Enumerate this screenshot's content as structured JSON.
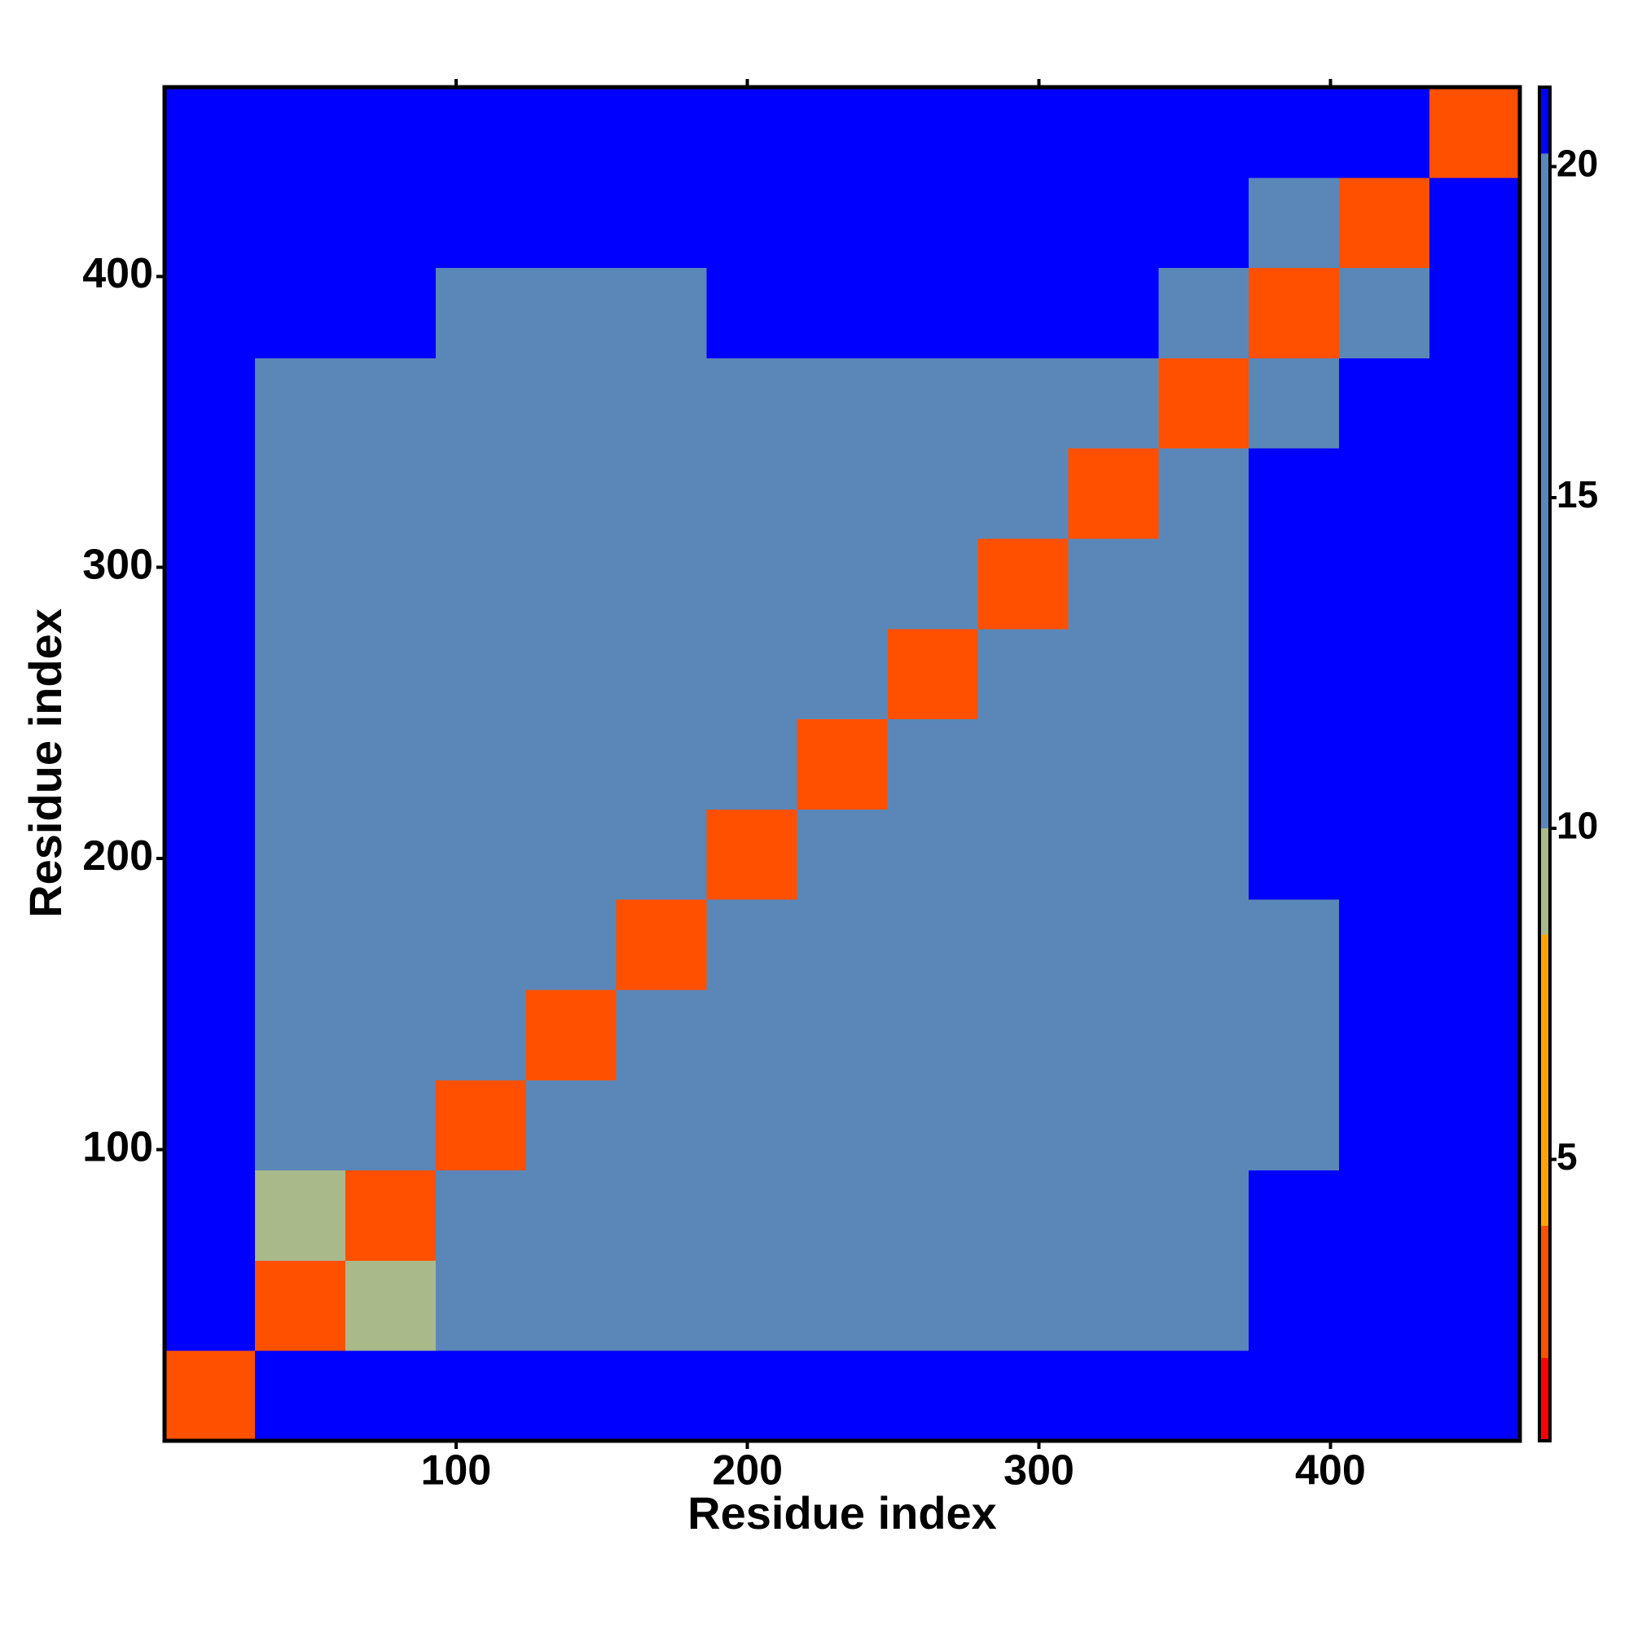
{
  "chart_data": {
    "type": "heatmap",
    "x_label": "Residue index",
    "y_label": "Residue index",
    "x_bins": [
      0,
      31,
      62,
      93,
      124,
      155,
      186,
      217,
      248,
      279,
      310,
      341,
      372,
      403,
      434,
      465
    ],
    "y_bins": [
      0,
      31,
      62,
      93,
      124,
      155,
      186,
      217,
      248,
      279,
      310,
      341,
      372,
      403,
      434,
      465
    ],
    "z": [
      [
        4,
        22,
        25,
        25,
        25,
        25,
        25,
        25,
        25,
        25,
        25,
        25,
        25,
        25,
        25
      ],
      [
        22,
        4,
        10,
        16,
        16,
        16,
        16,
        17,
        17,
        17,
        17,
        17,
        25,
        25,
        25
      ],
      [
        25,
        10,
        4,
        11,
        16,
        16,
        16,
        16,
        16,
        16,
        17,
        17,
        25,
        25,
        25
      ],
      [
        25,
        16,
        11,
        4,
        12,
        16,
        15,
        16,
        16,
        16,
        16,
        17,
        18,
        25,
        25
      ],
      [
        25,
        16,
        16,
        12,
        4,
        13,
        14,
        16,
        16,
        16,
        16,
        17,
        18,
        25,
        25
      ],
      [
        25,
        16,
        16,
        16,
        13,
        4,
        12,
        14,
        15,
        16,
        16,
        17,
        18,
        25,
        25
      ],
      [
        25,
        16,
        16,
        15,
        14,
        12,
        4,
        12,
        14,
        16,
        16,
        17,
        25,
        25,
        25
      ],
      [
        25,
        17,
        16,
        16,
        16,
        14,
        12,
        4,
        12,
        14,
        15,
        16,
        25,
        25,
        25
      ],
      [
        25,
        17,
        16,
        16,
        16,
        15,
        14,
        12,
        4,
        12,
        14,
        16,
        25,
        25,
        25
      ],
      [
        25,
        17,
        16,
        16,
        16,
        16,
        16,
        14,
        12,
        4,
        12,
        14,
        25,
        25,
        25
      ],
      [
        25,
        17,
        17,
        16,
        16,
        16,
        16,
        15,
        14,
        12,
        4,
        12,
        25,
        25,
        25
      ],
      [
        25,
        17,
        17,
        17,
        17,
        17,
        17,
        16,
        16,
        14,
        12,
        4,
        16,
        25,
        25
      ],
      [
        25,
        25,
        25,
        18,
        18,
        18,
        25,
        25,
        25,
        25,
        25,
        16,
        4,
        17,
        25
      ],
      [
        25,
        25,
        25,
        25,
        25,
        25,
        25,
        25,
        25,
        25,
        25,
        25,
        17,
        4,
        22
      ],
      [
        25,
        25,
        25,
        25,
        25,
        25,
        25,
        25,
        25,
        25,
        25,
        25,
        25,
        22,
        4
      ]
    ],
    "xlim": [
      0,
      465
    ],
    "ylim": [
      0,
      465
    ],
    "xticks": [
      100,
      200,
      300,
      400
    ],
    "yticks": [
      100,
      200,
      300,
      400
    ],
    "clim": [
      0.75,
      21.2
    ],
    "cticks": [
      5,
      10,
      15,
      20
    ],
    "colorscale": {
      "breaks": [
        0.75,
        2,
        4,
        8.4,
        10,
        20.2,
        21.2
      ],
      "colors": [
        "#ff0000",
        "#ff5000",
        "#ffa500",
        "#a9b98a",
        "#5b87b8",
        "#0000ff"
      ]
    }
  }
}
